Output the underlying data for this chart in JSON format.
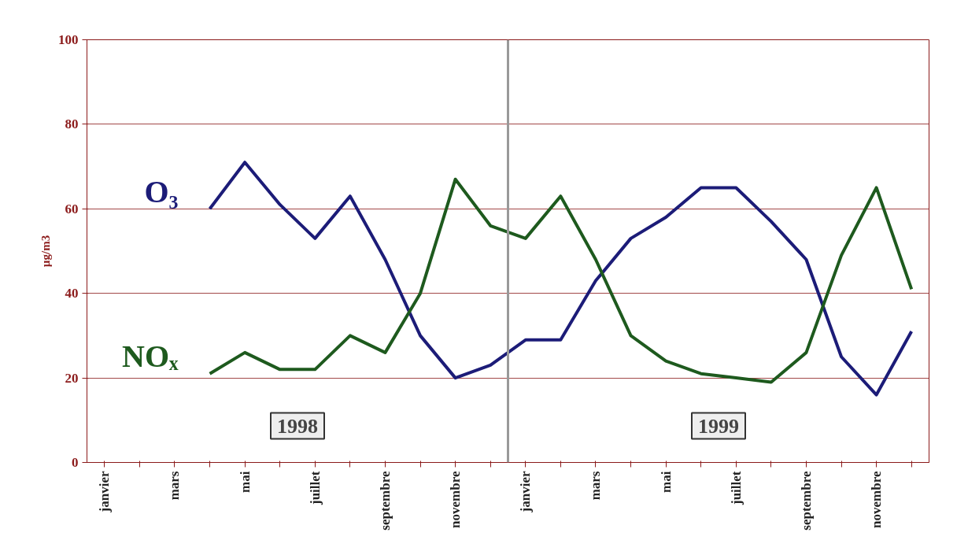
{
  "chart_data": {
    "type": "line",
    "ylabel": "µg/m3",
    "ylim": [
      0,
      100
    ],
    "yticks": [
      0,
      20,
      40,
      60,
      80,
      100
    ],
    "categories": [
      "janvier",
      null,
      "mars",
      null,
      "mai",
      null,
      "juillet",
      null,
      "septembre",
      null,
      "novembre",
      null,
      "janvier",
      null,
      "mars",
      null,
      "mai",
      null,
      "juillet",
      null,
      "septembre",
      null,
      "novembre",
      null
    ],
    "grid": "y",
    "marker": "none",
    "line_style": "solid",
    "annotations": [
      "1998",
      "1999"
    ],
    "series": [
      {
        "name": "O₃",
        "color": "#1c1c78",
        "values": [
          null,
          null,
          null,
          60,
          71,
          61,
          53,
          63,
          48,
          30,
          20,
          23,
          29,
          29,
          43,
          53,
          58,
          65,
          65,
          57,
          48,
          25,
          16,
          31
        ]
      },
      {
        "name": "NOₓ",
        "color": "#1e5a1e",
        "values": [
          null,
          null,
          null,
          21,
          26,
          22,
          22,
          30,
          26,
          40,
          67,
          56,
          53,
          63,
          48,
          30,
          24,
          21,
          20,
          19,
          26,
          49,
          65,
          41
        ]
      }
    ]
  }
}
